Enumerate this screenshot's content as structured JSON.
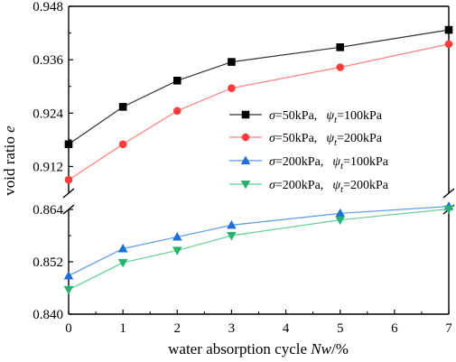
{
  "chart_data": {
    "type": "line",
    "xlabel_parts": [
      "water absorption cycle ",
      "Nw",
      "/%"
    ],
    "ylabel_parts": [
      "void ratio ",
      "e"
    ],
    "x_ticks": [
      0,
      1,
      2,
      3,
      4,
      5,
      6,
      7
    ],
    "upper_ticks": [
      "0.912",
      "0.924",
      "0.936",
      "0.948"
    ],
    "lower_ticks": [
      "0.840",
      "0.852",
      "0.864"
    ],
    "upper_ylim": [
      0.906,
      0.948
    ],
    "lower_ylim": [
      0.84,
      0.864
    ],
    "xlim": [
      0,
      7
    ],
    "axis_break": true,
    "grid": false,
    "legend_position": "center-right",
    "series": [
      {
        "legend": {
          "sym": "σ",
          "load": "=50kPa,",
          "psi": "ψ",
          "sub": "t",
          "suction": "=100kPa"
        },
        "marker": "square",
        "color": "#000000",
        "line_color": "#333333",
        "panel": "upper",
        "x": [
          0,
          1,
          2,
          3,
          5,
          7
        ],
        "y": [
          0.917,
          0.9254,
          0.9313,
          0.9355,
          0.9388,
          0.9427
        ]
      },
      {
        "legend": {
          "sym": "σ",
          "load": "=50kPa,",
          "psi": "ψ",
          "sub": "t",
          "suction": "=200kPa"
        },
        "marker": "circle",
        "color": "#ff3b3b",
        "line_color": "#ff7f7f",
        "panel": "upper",
        "x": [
          0,
          1,
          2,
          3,
          5,
          7
        ],
        "y": [
          0.909,
          0.917,
          0.9245,
          0.9296,
          0.9343,
          0.9395
        ]
      },
      {
        "legend": {
          "sym": "σ",
          "load": "=200kPa,",
          "psi": "ψ",
          "sub": "t",
          "suction": "=100kPa"
        },
        "marker": "triangle-up",
        "color": "#1f6fd6",
        "line_color": "#5b9be8",
        "panel": "lower",
        "x": [
          0,
          1,
          2,
          3,
          5,
          7
        ],
        "y": [
          0.8488,
          0.855,
          0.8577,
          0.8604,
          0.8631,
          0.8647
        ]
      },
      {
        "legend": {
          "sym": "σ",
          "load": "=200kPa,",
          "psi": "ψ",
          "sub": "t",
          "suction": "=200kPa"
        },
        "marker": "triangle-down",
        "color": "#27b36e",
        "line_color": "#62cf96",
        "panel": "lower",
        "x": [
          0,
          1,
          2,
          3,
          5,
          7
        ],
        "y": [
          0.8456,
          0.8518,
          0.8546,
          0.858,
          0.8616,
          0.8641
        ]
      }
    ]
  }
}
